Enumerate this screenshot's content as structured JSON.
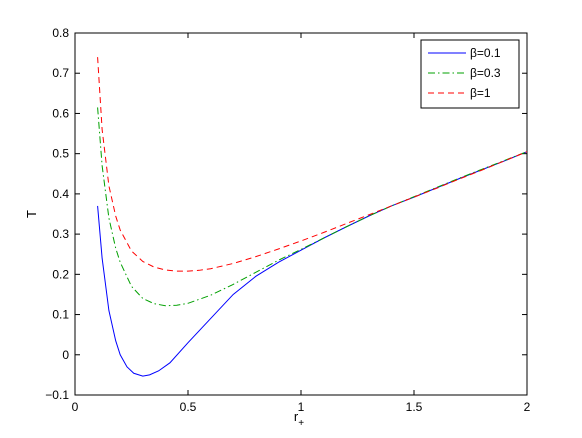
{
  "chart_data": {
    "type": "line",
    "title": "",
    "xlabel": "r",
    "xlabel_subscript": "+",
    "ylabel": "T",
    "xlim": [
      0,
      2
    ],
    "ylim": [
      -0.1,
      0.8
    ],
    "xticks": [
      "0",
      "0.5",
      "1",
      "1.5",
      "2"
    ],
    "yticks": [
      "−0.1",
      "0",
      "0.1",
      "0.2",
      "0.3",
      "0.4",
      "0.5",
      "0.6",
      "0.7",
      "0.8"
    ],
    "grid": false,
    "legend_position": "top-right",
    "series": [
      {
        "name": "β=0.1",
        "color": "#0000ff",
        "dash": "solid",
        "x": [
          0.1,
          0.12,
          0.15,
          0.18,
          0.2,
          0.23,
          0.26,
          0.3,
          0.33,
          0.37,
          0.42,
          0.5,
          0.6,
          0.7,
          0.8,
          0.9,
          1.0,
          1.1,
          1.2,
          1.3,
          1.4,
          1.5,
          1.6,
          1.7,
          1.8,
          1.9,
          2.0
        ],
        "y": [
          0.37,
          0.24,
          0.11,
          0.035,
          0.0,
          -0.03,
          -0.046,
          -0.053,
          -0.05,
          -0.04,
          -0.02,
          0.03,
          0.09,
          0.15,
          0.195,
          0.23,
          0.26,
          0.29,
          0.318,
          0.345,
          0.37,
          0.392,
          0.415,
          0.438,
          0.46,
          0.482,
          0.505
        ]
      },
      {
        "name": "β=0.3",
        "color": "#00a000",
        "dash": "dashdot",
        "x": [
          0.1,
          0.12,
          0.15,
          0.18,
          0.2,
          0.25,
          0.3,
          0.35,
          0.4,
          0.45,
          0.5,
          0.6,
          0.7,
          0.8,
          0.9,
          1.0,
          1.1,
          1.2,
          1.3,
          1.4,
          1.5,
          1.6,
          1.7,
          1.8,
          1.9,
          2.0
        ],
        "y": [
          0.615,
          0.47,
          0.34,
          0.265,
          0.23,
          0.17,
          0.14,
          0.127,
          0.122,
          0.123,
          0.128,
          0.148,
          0.175,
          0.205,
          0.235,
          0.262,
          0.29,
          0.318,
          0.345,
          0.37,
          0.393,
          0.416,
          0.439,
          0.461,
          0.483,
          0.505
        ]
      },
      {
        "name": "β=1",
        "color": "#ff0000",
        "dash": "dashed",
        "x": [
          0.1,
          0.12,
          0.15,
          0.18,
          0.2,
          0.25,
          0.3,
          0.35,
          0.4,
          0.45,
          0.5,
          0.55,
          0.6,
          0.7,
          0.8,
          0.9,
          1.0,
          1.1,
          1.2,
          1.3,
          1.4,
          1.5,
          1.6,
          1.7,
          1.8,
          1.9,
          2.0
        ],
        "y": [
          0.74,
          0.56,
          0.42,
          0.345,
          0.31,
          0.258,
          0.232,
          0.218,
          0.211,
          0.208,
          0.208,
          0.21,
          0.214,
          0.227,
          0.244,
          0.263,
          0.283,
          0.304,
          0.326,
          0.348,
          0.37,
          0.392,
          0.414,
          0.437,
          0.459,
          0.482,
          0.505
        ]
      }
    ]
  }
}
